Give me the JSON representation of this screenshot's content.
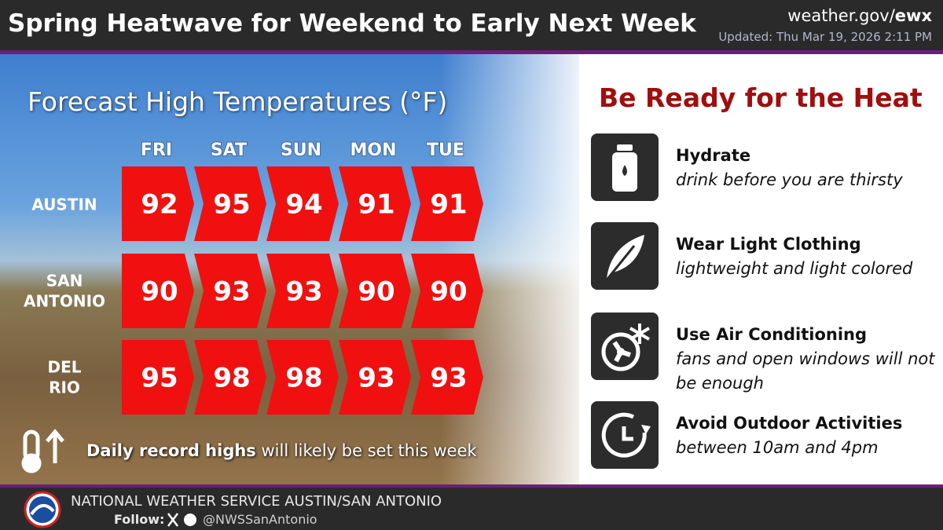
{
  "header": {
    "title": "Spring Heatwave for Weekend to Early Next Week",
    "site_prefix": "weather.gov/",
    "site_office": "ewx",
    "updated": "Updated: Thu Mar 19, 2026 2:11 PM"
  },
  "forecast": {
    "title": "Forecast High Temperatures (°F)",
    "days": [
      "FRI",
      "SAT",
      "SUN",
      "MON",
      "TUE"
    ],
    "cities": [
      {
        "name": "AUSTIN",
        "highs": [
          92,
          95,
          94,
          91,
          91
        ]
      },
      {
        "name": "SAN ANTONIO",
        "highs": [
          90,
          93,
          93,
          90,
          90
        ]
      },
      {
        "name": "DEL RIO",
        "highs": [
          95,
          98,
          98,
          93,
          93
        ]
      }
    ],
    "note_bold": "Daily record highs",
    "note_rest": " will likely be set this week"
  },
  "tips": {
    "title": "Be Ready for the Heat",
    "items": [
      {
        "title": "Hydrate",
        "text": "drink before you are thirsty"
      },
      {
        "title": "Wear Light Clothing",
        "text": "lightweight and light colored"
      },
      {
        "title": "Use Air Conditioning",
        "text": "fans and open windows will not be enough"
      },
      {
        "title": "Avoid Outdoor Activities",
        "text": "between 10am and 4pm"
      }
    ]
  },
  "footer": {
    "org": "NATIONAL WEATHER SERVICE AUSTIN/SAN ANTONIO",
    "follow": "Follow:",
    "handle": "@NWSSanAntonio"
  }
}
